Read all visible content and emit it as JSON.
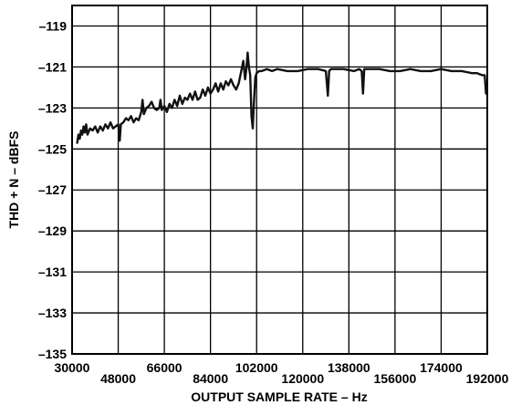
{
  "chart_data": {
    "type": "line",
    "title": "",
    "xlabel": "OUTPUT SAMPLE RATE – Hz",
    "ylabel": "THD + N – dBFS",
    "xlim": [
      30000,
      192000
    ],
    "ylim": [
      -135,
      -118
    ],
    "grid": true,
    "x_ticks": [
      30000,
      48000,
      66000,
      84000,
      102000,
      120000,
      138000,
      156000,
      174000,
      192000
    ],
    "x_tick_labels": [
      "30000",
      "48000",
      "66000",
      "84000",
      "102000",
      "120000",
      "138000",
      "156000",
      "174000",
      "192000"
    ],
    "y_ticks": [
      -135,
      -133,
      -131,
      -129,
      -127,
      -125,
      -123,
      -121,
      -119
    ],
    "y_tick_labels": [
      "–135",
      "–133",
      "–131",
      "–129",
      "–127",
      "–125",
      "–123",
      "–121",
      "–119"
    ],
    "series": [
      {
        "color": "#111111",
        "x": [
          32000,
          32500,
          33000,
          33500,
          34000,
          34500,
          35000,
          35500,
          36000,
          37000,
          38000,
          39000,
          40000,
          41000,
          42000,
          43000,
          44000,
          45000,
          46000,
          47000,
          48000,
          48300,
          48600,
          49000,
          50000,
          51000,
          52000,
          53000,
          54000,
          55000,
          56000,
          57000,
          57500,
          58000,
          59000,
          60000,
          61000,
          62000,
          63000,
          64000,
          64500,
          65000,
          66000,
          67000,
          68000,
          69000,
          70000,
          71000,
          72000,
          73000,
          74000,
          75000,
          76000,
          77000,
          78000,
          79000,
          80000,
          81000,
          82000,
          83000,
          84000,
          85000,
          86000,
          87000,
          88000,
          89000,
          90000,
          91000,
          92000,
          93000,
          94000,
          95000,
          96000,
          96800,
          97500,
          98000,
          98500,
          99000,
          99500,
          100000,
          100500,
          101000,
          101500,
          102000,
          103000,
          104000,
          106000,
          108000,
          110000,
          114000,
          118000,
          122000,
          126000,
          129000,
          129800,
          130300,
          131000,
          133000,
          136000,
          140000,
          142000,
          143000,
          143500,
          144000,
          146000,
          150000,
          154000,
          158000,
          162000,
          166000,
          170000,
          174000,
          178000,
          182000,
          186000,
          188000,
          190000,
          191000,
          191500
        ],
        "y": [
          -124.7,
          -124.3,
          -124.5,
          -124.1,
          -124.3,
          -123.9,
          -124.2,
          -123.8,
          -124.3,
          -124.0,
          -124.1,
          -123.9,
          -124.2,
          -123.9,
          -124.1,
          -123.8,
          -124.0,
          -123.7,
          -124.0,
          -123.9,
          -123.8,
          -124.2,
          -124.6,
          -123.8,
          -123.7,
          -123.5,
          -123.6,
          -123.4,
          -123.7,
          -123.5,
          -123.6,
          -123.2,
          -122.6,
          -123.3,
          -123.0,
          -122.9,
          -122.7,
          -123.0,
          -123.1,
          -123.0,
          -122.6,
          -123.1,
          -122.9,
          -123.2,
          -122.8,
          -123.0,
          -122.6,
          -122.9,
          -122.4,
          -122.8,
          -122.5,
          -122.6,
          -122.3,
          -122.6,
          -122.2,
          -122.6,
          -122.5,
          -122.1,
          -122.4,
          -122.0,
          -122.3,
          -122.1,
          -121.8,
          -122.2,
          -121.8,
          -122.1,
          -121.7,
          -121.9,
          -121.6,
          -121.9,
          -122.1,
          -121.8,
          -121.2,
          -120.7,
          -121.6,
          -121.1,
          -120.3,
          -121.0,
          -121.4,
          -123.4,
          -124.0,
          -122.6,
          -121.5,
          -121.3,
          -121.2,
          -121.2,
          -121.1,
          -121.2,
          -121.1,
          -121.2,
          -121.2,
          -121.1,
          -121.1,
          -121.2,
          -122.4,
          -121.2,
          -121.1,
          -121.1,
          -121.1,
          -121.2,
          -121.1,
          -121.2,
          -122.3,
          -121.1,
          -121.1,
          -121.1,
          -121.2,
          -121.2,
          -121.1,
          -121.2,
          -121.2,
          -121.1,
          -121.2,
          -121.2,
          -121.3,
          -121.3,
          -121.4,
          -121.4,
          -122.3
        ]
      }
    ]
  }
}
